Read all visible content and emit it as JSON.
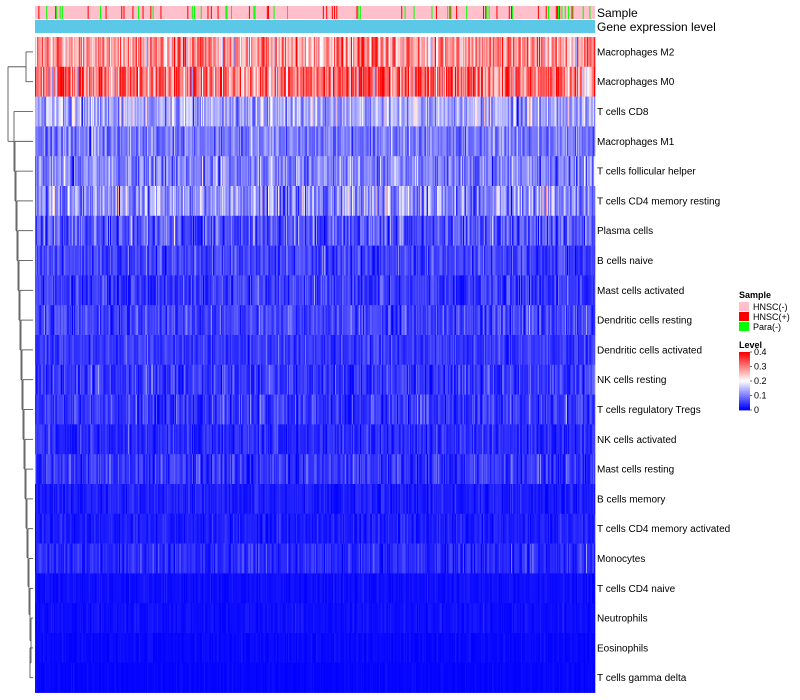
{
  "chart_data": {
    "type": "heatmap",
    "title": "",
    "annotation_tracks": [
      {
        "name": "Sample"
      },
      {
        "name": "Gene expression level"
      }
    ],
    "rows": [
      "Macrophages M2",
      "Macrophages M0",
      "T cells CD8",
      "Macrophages M1",
      "T cells follicular helper",
      "T cells CD4 memory resting",
      "Plasma cells",
      "B cells naive",
      "Mast cells activated",
      "Dendritic cells resting",
      "Dendritic cells activated",
      "NK cells resting",
      "T cells regulatory  Tregs",
      "NK cells activated",
      "Mast cells resting",
      "B cells memory",
      "T cells CD4 memory activated",
      "Monocytes",
      "T cells CD4 naive",
      "Neutrophils",
      "Eosinophils",
      "T cells gamma delta"
    ],
    "row_mean_levels": [
      0.28,
      0.3,
      0.13,
      0.09,
      0.1,
      0.11,
      0.06,
      0.05,
      0.04,
      0.05,
      0.04,
      0.04,
      0.04,
      0.03,
      0.04,
      0.02,
      0.02,
      0.03,
      0.01,
      0.01,
      0.005,
      0.003
    ],
    "row_spread": [
      0.1,
      0.12,
      0.07,
      0.05,
      0.06,
      0.08,
      0.06,
      0.04,
      0.04,
      0.04,
      0.03,
      0.04,
      0.04,
      0.03,
      0.04,
      0.02,
      0.02,
      0.03,
      0.01,
      0.01,
      0.008,
      0.006
    ],
    "n_columns": 500,
    "sample_groups": {
      "categories": [
        "HNSC(-)",
        "HNSC(+)",
        "Para(-)"
      ],
      "colors": [
        "#FFC0CB",
        "#FF0000",
        "#00FF00"
      ],
      "approx_fraction": [
        0.86,
        0.08,
        0.06
      ]
    },
    "gene_expression_color": "#5BC8E8",
    "level_legend": {
      "title": "Level",
      "ticks": [
        0.4,
        0.3,
        0.2,
        0.1,
        0
      ],
      "tick_labels": [
        "0.4",
        "0.3",
        "0.2",
        "0.1",
        "0"
      ],
      "range": [
        0,
        0.4
      ],
      "color_low": "#0000FF",
      "color_mid": "#FFFFFF",
      "color_high": "#FF0000"
    },
    "sample_legend_title": "Sample"
  }
}
